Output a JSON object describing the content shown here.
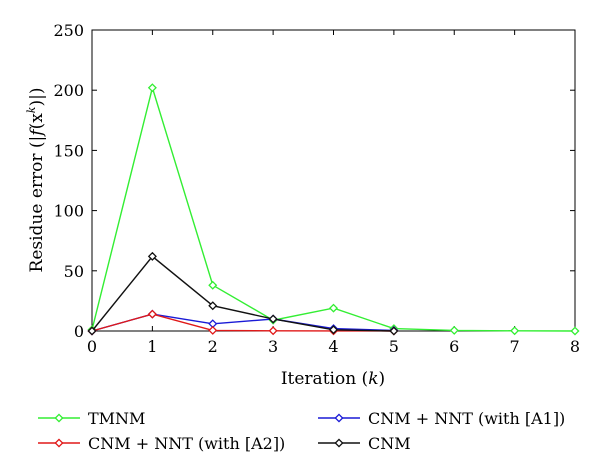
{
  "chart_data": {
    "type": "line",
    "title": "",
    "xlabel_main": "Iteration",
    "xlabel_var": "k",
    "ylabel": "Residue error (|f(x^k)|)",
    "ylabel_prefix": "Residue error (|",
    "ylabel_f": "f",
    "ylabel_x": "(x",
    "ylabel_k": "k",
    "ylabel_suffix": ")|)",
    "xlim": [
      0,
      8
    ],
    "ylim": [
      0,
      250
    ],
    "xticks": [
      0,
      1,
      2,
      3,
      4,
      5,
      6,
      7,
      8
    ],
    "yticks": [
      0,
      50,
      100,
      150,
      200,
      250
    ],
    "grid": false,
    "legend_position": "bottom",
    "marker": "diamond",
    "series": [
      {
        "name": "TMNM",
        "color": "#33ee33",
        "x": [
          0,
          1,
          2,
          3,
          4,
          5,
          6,
          7,
          8
        ],
        "y": [
          1,
          202,
          38,
          9,
          19,
          2,
          0.5,
          0.2,
          0
        ]
      },
      {
        "name": "CNM + NNT (with [A1])",
        "color": "#1a1ad6",
        "x": [
          0,
          1,
          2,
          3,
          4,
          5
        ],
        "y": [
          0,
          14,
          6,
          10,
          2,
          0.5
        ]
      },
      {
        "name": "CNM + NNT (with [A2])",
        "color": "#e01818",
        "x": [
          0,
          1,
          2,
          3,
          4,
          5
        ],
        "y": [
          0,
          14,
          0.5,
          0.2,
          0.1,
          0
        ]
      },
      {
        "name": "CNM",
        "color": "#111111",
        "x": [
          0,
          1,
          2,
          3,
          4,
          5
        ],
        "y": [
          0,
          62,
          21,
          10,
          1,
          0
        ]
      }
    ]
  }
}
